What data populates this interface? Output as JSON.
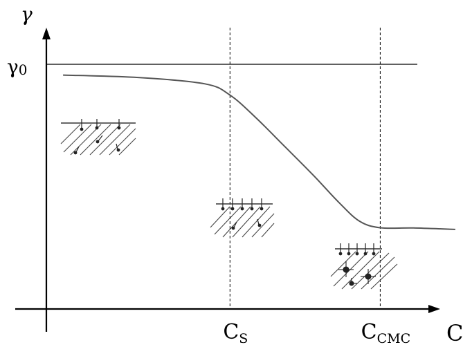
{
  "chart_data": {
    "type": "line",
    "y_axis_label": "γ",
    "x_axis_label": "C",
    "reference_line": {
      "base": "γ",
      "subscript": "0",
      "level": 1.0
    },
    "markers": [
      {
        "base": "C",
        "subscript": "S",
        "x": 0.44
      },
      {
        "base": "C",
        "subscript": "CMC",
        "x": 0.8
      }
    ],
    "series": [
      {
        "points": [
          {
            "x": 0.04,
            "y": 0.956
          },
          {
            "x": 0.22,
            "y": 0.946
          },
          {
            "x": 0.38,
            "y": 0.92
          },
          {
            "x": 0.44,
            "y": 0.874
          },
          {
            "x": 0.5,
            "y": 0.785
          },
          {
            "x": 0.57,
            "y": 0.666
          },
          {
            "x": 0.64,
            "y": 0.546
          },
          {
            "x": 0.7,
            "y": 0.437
          },
          {
            "x": 0.75,
            "y": 0.359
          },
          {
            "x": 0.8,
            "y": 0.332
          },
          {
            "x": 0.88,
            "y": 0.331
          },
          {
            "x": 0.98,
            "y": 0.325
          }
        ]
      }
    ],
    "grid": false,
    "legend": false
  }
}
